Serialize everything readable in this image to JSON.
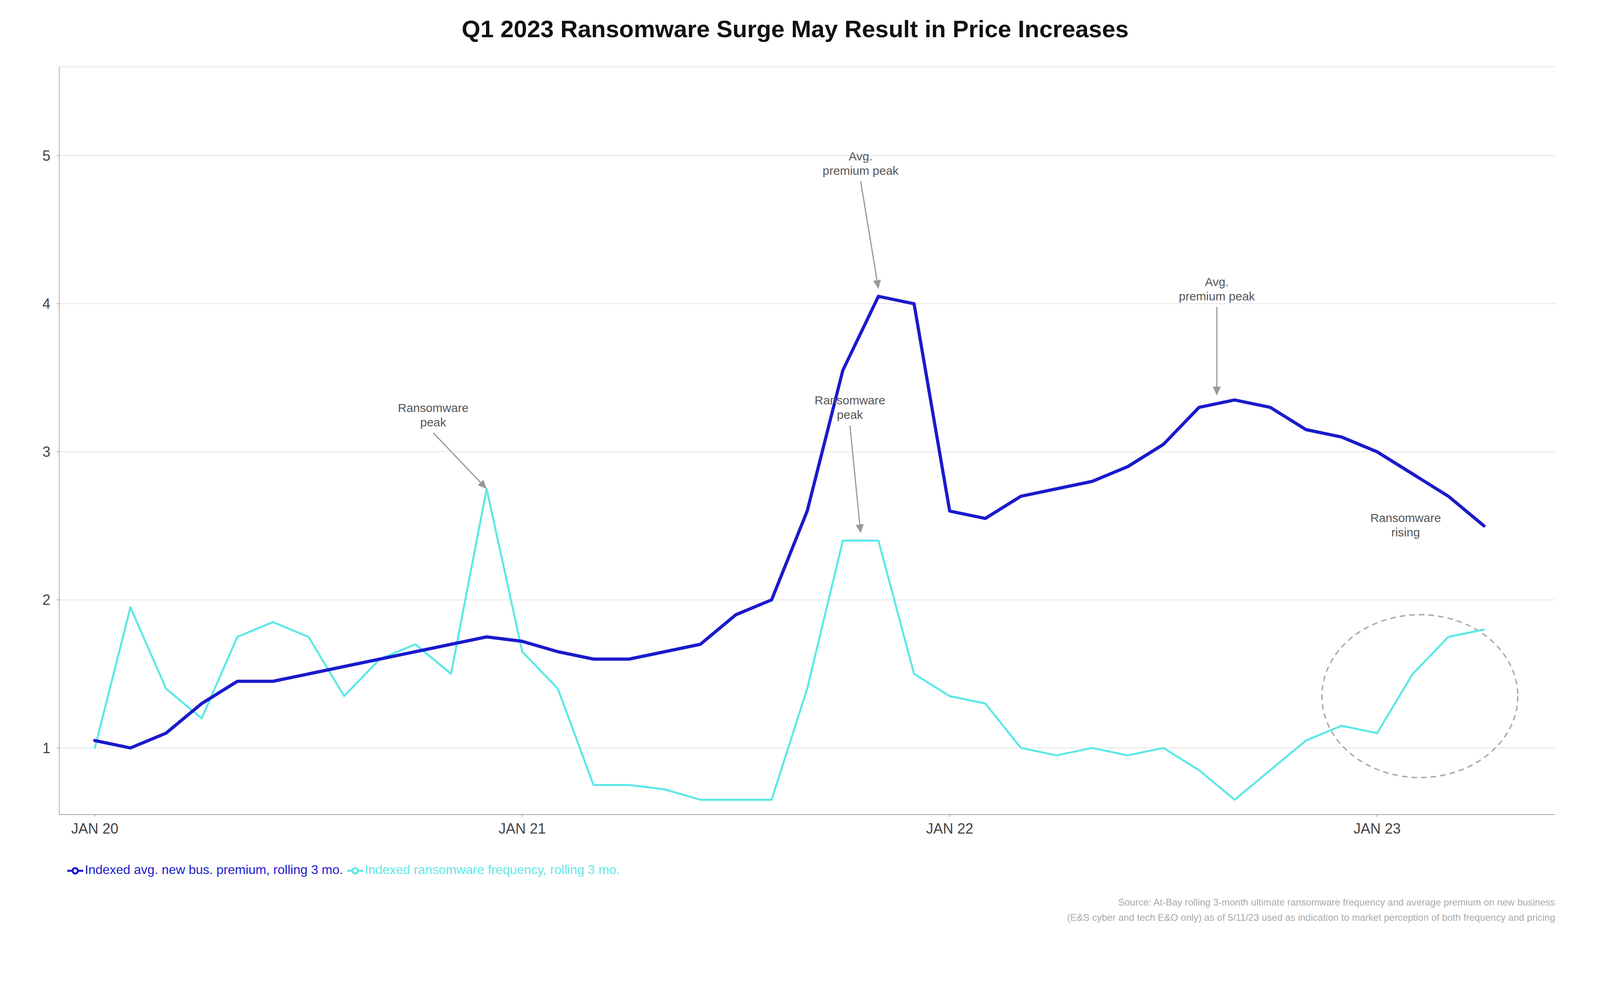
{
  "chart_data": {
    "type": "line",
    "title": "Q1 2023 Ransomware Surge May Result in Price Increases",
    "x": [
      0,
      1,
      2,
      3,
      4,
      5,
      6,
      7,
      8,
      9,
      10,
      11,
      12,
      13,
      14,
      15,
      16,
      17,
      18,
      19,
      20,
      21,
      22,
      23,
      24,
      25,
      26,
      27,
      28,
      29,
      30,
      31,
      32,
      33,
      34,
      35,
      36,
      37,
      38,
      39
    ],
    "series": [
      {
        "name": "Indexed ransomware frequency, rolling 3 mo.",
        "color": "#5ce8e8",
        "values": [
          1.0,
          1.95,
          1.4,
          1.2,
          1.75,
          1.85,
          1.75,
          1.35,
          1.6,
          1.7,
          1.5,
          2.75,
          1.65,
          1.4,
          0.75,
          0.75,
          0.72,
          0.65,
          0.65,
          0.65,
          1.4,
          2.4,
          2.4,
          1.5,
          1.35,
          1.3,
          1.0,
          0.95,
          1.0,
          0.95,
          1.0,
          0.85,
          0.65,
          0.85,
          1.05,
          1.15,
          1.1,
          1.5,
          1.75,
          1.8
        ]
      },
      {
        "name": "Indexed avg. new bus. premium, rolling 3 mo.",
        "color": "#1a1acc",
        "values": [
          1.05,
          1.0,
          1.1,
          1.3,
          1.45,
          1.45,
          1.5,
          1.55,
          1.6,
          1.65,
          1.7,
          1.75,
          1.72,
          1.65,
          1.6,
          1.6,
          1.65,
          1.7,
          1.9,
          2.0,
          2.6,
          3.55,
          4.05,
          4.0,
          2.6,
          2.55,
          2.7,
          2.75,
          2.8,
          2.9,
          3.05,
          3.3,
          3.35,
          3.3,
          3.15,
          3.1,
          3.0,
          2.85,
          2.7,
          2.5
        ]
      }
    ],
    "xlim": [
      -1.0,
      41.0
    ],
    "xticks": [
      {
        "value": 0,
        "label": "JAN 20"
      },
      {
        "value": 12,
        "label": "JAN 21"
      },
      {
        "value": 24,
        "label": "JAN 22"
      },
      {
        "value": 36,
        "label": "JAN 23"
      }
    ],
    "ylim": [
      0.55,
      5.6
    ],
    "yticks": [
      1,
      2,
      3,
      4,
      5
    ],
    "grid": "y",
    "legend": "bottom",
    "annotations": [
      {
        "text": "Ransomware\npeak",
        "x": 9.5,
        "y": 3.15,
        "arrow_x": 11.0,
        "arrow_y": 2.75
      },
      {
        "text": "Avg.\npremium peak",
        "x": 21.5,
        "y": 4.85,
        "arrow_x": 22.0,
        "arrow_y": 4.1
      },
      {
        "text": "Ransomware\npeak",
        "x": 21.2,
        "y": 3.2,
        "arrow_x": 21.5,
        "arrow_y": 2.45
      },
      {
        "text": "Avg.\npremium peak",
        "x": 31.5,
        "y": 4.0,
        "arrow_x": 31.5,
        "arrow_y": 3.38
      },
      {
        "text": "Ransomware\nrising",
        "x": 36.8,
        "y": 2.5
      }
    ],
    "ellipse": {
      "cx": 37.2,
      "cy": 1.35,
      "width": 5.5,
      "height": 1.1
    },
    "source": [
      "Source: At-Bay rolling 3-month ultimate ransomware frequency and average premium on new business",
      "(E&S cyber and tech E&O only) as of 5/11/23 used as indication to market perception of both frequency and pricing"
    ]
  }
}
